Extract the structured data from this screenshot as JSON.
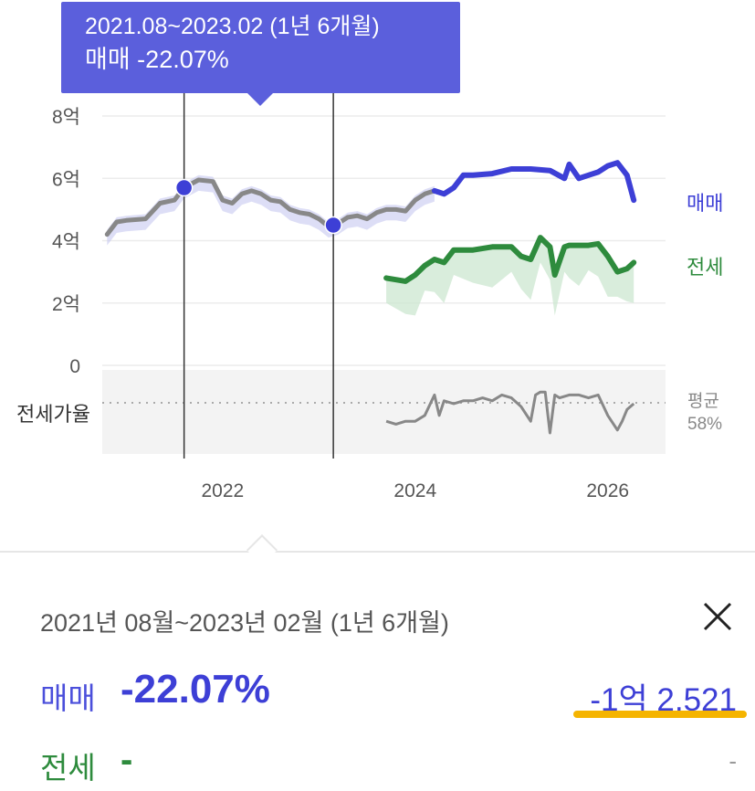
{
  "tooltip": {
    "period": "2021.08~2023.02 (1년 6개월)",
    "change": "매매 -22.07%"
  },
  "panel": {
    "period": "2021년 08월~2023년 02월 (1년 6개월)",
    "sale_label": "매매",
    "sale_change": "-22.07%",
    "sale_amount": "-1억 2,521",
    "jeonse_label": "전세",
    "jeonse_change": "-",
    "jeonse_amount": "-"
  },
  "colors": {
    "sale": "#3d3fd6",
    "jeonse": "#2e8b3d",
    "history": "#888888",
    "tooltip_bg": "#5b5fdc",
    "highlight": "#f5b400"
  },
  "chart_data": {
    "type": "line",
    "unit": "억",
    "x_ticks": [
      "2022",
      "2024",
      "2026"
    ],
    "y_ticks": [
      "8억",
      "6억",
      "4억",
      "2억",
      "0"
    ],
    "ylim": [
      0,
      8
    ],
    "xlim": [
      2020.75,
      2026.6
    ],
    "series": [
      {
        "name": "매매",
        "segment": "past",
        "x": [
          2020.8,
          2020.9,
          2021.0,
          2021.2,
          2021.35,
          2021.5,
          2021.6,
          2021.75,
          2021.9,
          2022.0,
          2022.1,
          2022.2,
          2022.3,
          2022.4,
          2022.5,
          2022.6,
          2022.7,
          2022.8,
          2022.9,
          2023.0,
          2023.1,
          2023.2,
          2023.3,
          2023.4,
          2023.5,
          2023.6,
          2023.7,
          2023.8,
          2023.9,
          2024.0,
          2024.1,
          2024.2
        ],
        "y": [
          4.2,
          4.6,
          4.65,
          4.7,
          5.2,
          5.3,
          5.7,
          5.95,
          5.9,
          5.3,
          5.2,
          5.5,
          5.6,
          5.5,
          5.3,
          5.25,
          5.0,
          4.9,
          4.85,
          4.7,
          4.45,
          4.55,
          4.75,
          4.8,
          4.7,
          4.9,
          5.0,
          5.0,
          4.95,
          5.3,
          5.5,
          5.6
        ]
      },
      {
        "name": "매매",
        "segment": "current",
        "x": [
          2024.2,
          2024.3,
          2024.4,
          2024.5,
          2024.6,
          2024.8,
          2025.0,
          2025.2,
          2025.4,
          2025.55,
          2025.6,
          2025.7,
          2025.8,
          2025.9,
          2026.0,
          2026.1,
          2026.2,
          2026.27
        ],
        "y": [
          5.6,
          5.5,
          5.7,
          6.1,
          6.1,
          6.15,
          6.3,
          6.3,
          6.25,
          6.0,
          6.45,
          6.0,
          6.1,
          6.2,
          6.4,
          6.5,
          6.1,
          5.3
        ]
      },
      {
        "name": "전세",
        "x": [
          2023.7,
          2023.9,
          2024.0,
          2024.1,
          2024.2,
          2024.3,
          2024.4,
          2024.6,
          2024.8,
          2025.0,
          2025.1,
          2025.2,
          2025.3,
          2025.4,
          2025.45,
          2025.55,
          2025.6,
          2025.7,
          2025.8,
          2025.9,
          2026.0,
          2026.1,
          2026.2,
          2026.27
        ],
        "y": [
          2.8,
          2.7,
          2.9,
          3.2,
          3.4,
          3.3,
          3.7,
          3.7,
          3.8,
          3.8,
          3.5,
          3.4,
          4.1,
          3.8,
          2.9,
          3.8,
          3.85,
          3.85,
          3.85,
          3.9,
          3.5,
          3.0,
          3.1,
          3.3
        ]
      },
      {
        "name": "전세가율",
        "x": [
          2023.7,
          2023.8,
          2023.9,
          2024.0,
          2024.1,
          2024.2,
          2024.25,
          2024.3,
          2024.4,
          2024.5,
          2024.6,
          2024.7,
          2024.8,
          2024.9,
          2025.0,
          2025.1,
          2025.2,
          2025.25,
          2025.3,
          2025.35,
          2025.4,
          2025.45,
          2025.5,
          2025.6,
          2025.7,
          2025.8,
          2025.9,
          2026.0,
          2026.1,
          2026.15,
          2026.2,
          2026.27
        ],
        "y": [
          54,
          53,
          54,
          54,
          56,
          63,
          56,
          61,
          60,
          61,
          61,
          62,
          61,
          63,
          62,
          59,
          54,
          63,
          64,
          64,
          50,
          63,
          62,
          63,
          63,
          62,
          63,
          56,
          51,
          54,
          58,
          60
        ]
      }
    ],
    "selection": {
      "start": 2021.6,
      "end": 2023.15
    },
    "ltv_label": "전세가율",
    "ltv_average_label": "평균",
    "ltv_average_value": "58%",
    "ltv_average": 58,
    "ltv_range": [
      45,
      70
    ],
    "series_labels": {
      "sale": "매매",
      "jeonse": "전세"
    }
  }
}
